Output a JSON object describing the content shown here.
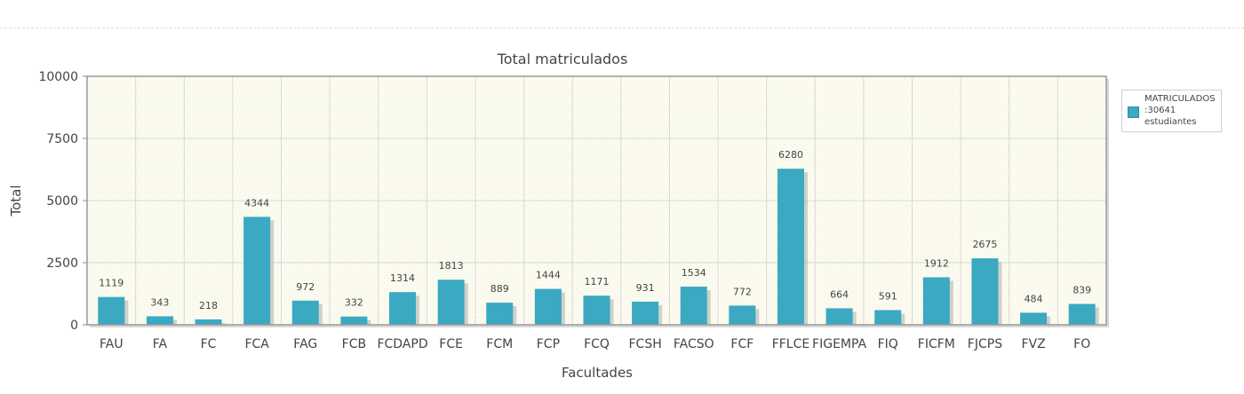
{
  "chart_data": {
    "type": "bar",
    "title": "Total matriculados",
    "xlabel": "Facultades",
    "ylabel": "Total",
    "ylim": [
      0,
      10000
    ],
    "yticks": [
      "0",
      "2500",
      "5000",
      "7500",
      "10000"
    ],
    "ytick_values": [
      0,
      2500,
      5000,
      7500,
      10000
    ],
    "categories": [
      "FAU",
      "FA",
      "FC",
      "FCA",
      "FAG",
      "FCB",
      "FCDAPD",
      "FCE",
      "FCM",
      "FCP",
      "FCQ",
      "FCSH",
      "FACSO",
      "FCF",
      "FFLCE",
      "FIGEMPA",
      "FIQ",
      "FICFM",
      "FJCPS",
      "FVZ",
      "FO"
    ],
    "series": [
      {
        "name": "MATRICULADOS :30641 estudiantes",
        "values": [
          1119,
          343,
          218,
          4344,
          972,
          332,
          1314,
          1813,
          889,
          1444,
          1171,
          931,
          1534,
          772,
          6280,
          664,
          591,
          1912,
          2675,
          484,
          839
        ]
      }
    ],
    "bar_color": "#3aa9c1",
    "plot_background": "#fcfbf0",
    "grid": true,
    "legend_position": "right"
  },
  "legend": {
    "label": "MATRICULADOS\n:30641\nestudiantes"
  }
}
